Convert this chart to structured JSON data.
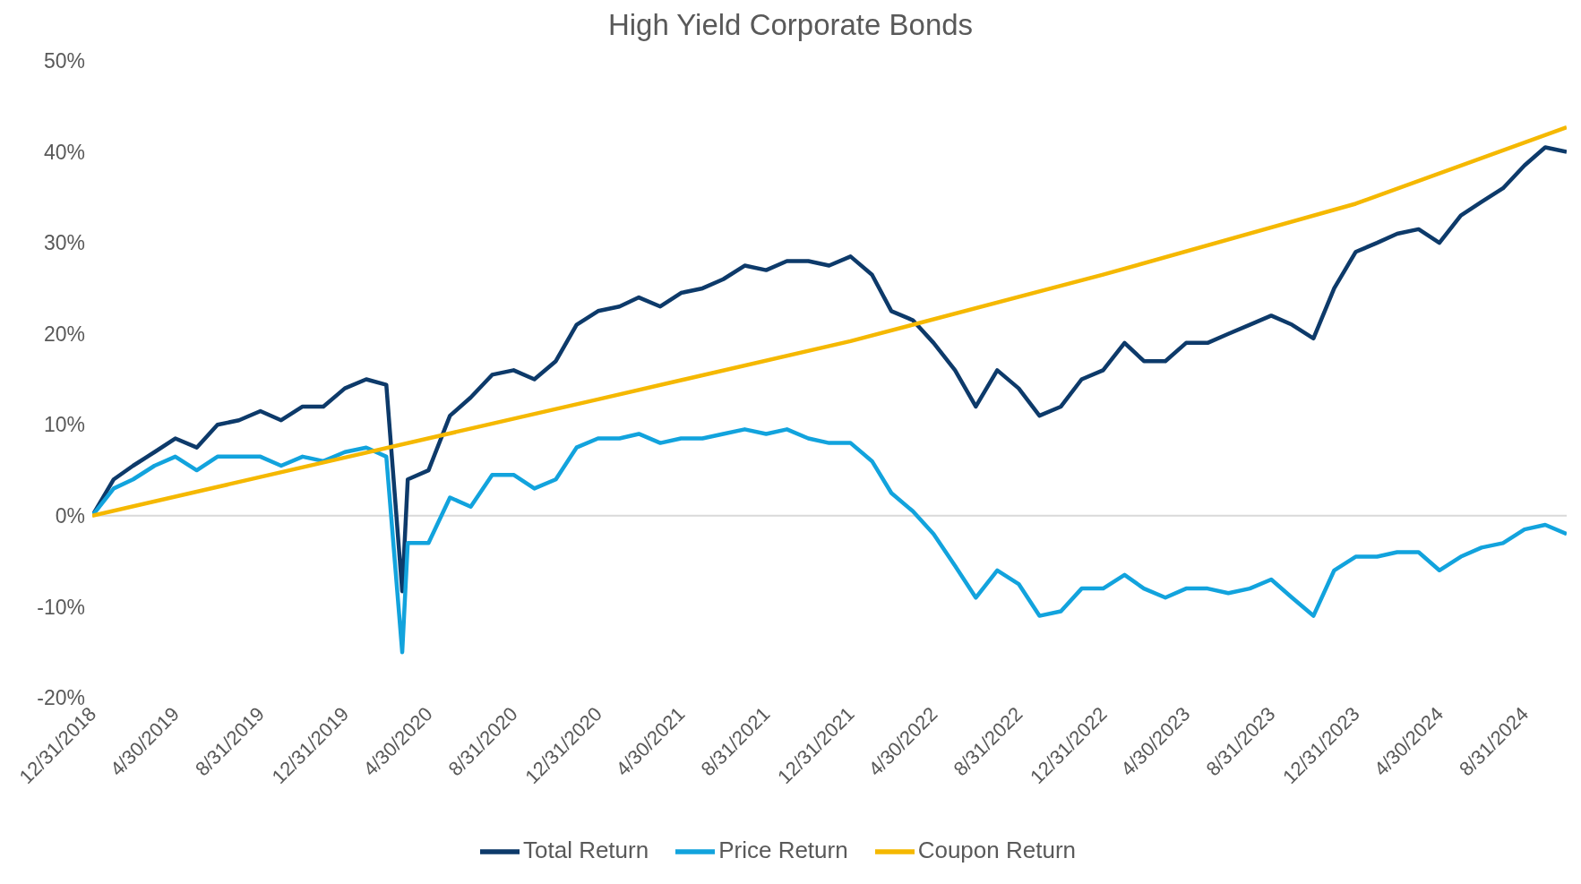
{
  "chart_data": {
    "type": "line",
    "title": "High Yield Corporate Bonds",
    "legend": "bottom",
    "grid": false,
    "marker": "none",
    "line_style": "solid",
    "xlim": [
      "2018-12-31",
      "2024-10-31"
    ],
    "xticks": [
      {
        "value": "2018-12-31",
        "label": "12/31/2018"
      },
      {
        "value": "2019-04-30",
        "label": "4/30/2019"
      },
      {
        "value": "2019-08-31",
        "label": "8/31/2019"
      },
      {
        "value": "2019-12-31",
        "label": "12/31/2019"
      },
      {
        "value": "2020-04-30",
        "label": "4/30/2020"
      },
      {
        "value": "2020-08-31",
        "label": "8/31/2020"
      },
      {
        "value": "2020-12-31",
        "label": "12/31/2020"
      },
      {
        "value": "2021-04-30",
        "label": "4/30/2021"
      },
      {
        "value": "2021-08-31",
        "label": "8/31/2021"
      },
      {
        "value": "2021-12-31",
        "label": "12/31/2021"
      },
      {
        "value": "2022-04-30",
        "label": "4/30/2022"
      },
      {
        "value": "2022-08-31",
        "label": "8/31/2022"
      },
      {
        "value": "2022-12-31",
        "label": "12/31/2022"
      },
      {
        "value": "2023-04-30",
        "label": "4/30/2023"
      },
      {
        "value": "2023-08-31",
        "label": "8/31/2023"
      },
      {
        "value": "2023-12-31",
        "label": "12/31/2023"
      },
      {
        "value": "2024-04-30",
        "label": "4/30/2024"
      },
      {
        "value": "2024-08-31",
        "label": "8/31/2024"
      }
    ],
    "ylim": [
      -20,
      50
    ],
    "yticks": [
      {
        "value": -20,
        "label": "-20%"
      },
      {
        "value": -10,
        "label": "-10%"
      },
      {
        "value": 0,
        "label": "0%"
      },
      {
        "value": 10,
        "label": "10%"
      },
      {
        "value": 20,
        "label": "20%"
      },
      {
        "value": 30,
        "label": "30%"
      },
      {
        "value": 40,
        "label": "40%"
      },
      {
        "value": 50,
        "label": "50%"
      }
    ],
    "ref_lines": [
      {
        "axis": "y",
        "value": 0,
        "color": "#d9d9d9"
      }
    ],
    "x": [
      "2018-12-31",
      "2019-01-31",
      "2019-02-28",
      "2019-03-31",
      "2019-04-30",
      "2019-05-31",
      "2019-06-30",
      "2019-07-31",
      "2019-08-31",
      "2019-09-30",
      "2019-10-31",
      "2019-11-30",
      "2019-12-31",
      "2020-01-31",
      "2020-02-29",
      "2020-03-23",
      "2020-03-31",
      "2020-04-30",
      "2020-05-31",
      "2020-06-30",
      "2020-07-31",
      "2020-08-31",
      "2020-09-30",
      "2020-10-31",
      "2020-11-30",
      "2020-12-31",
      "2021-01-31",
      "2021-02-28",
      "2021-03-31",
      "2021-04-30",
      "2021-05-31",
      "2021-06-30",
      "2021-07-31",
      "2021-08-31",
      "2021-09-30",
      "2021-10-31",
      "2021-11-30",
      "2021-12-31",
      "2022-01-31",
      "2022-02-28",
      "2022-03-31",
      "2022-04-30",
      "2022-05-31",
      "2022-06-30",
      "2022-07-31",
      "2022-08-31",
      "2022-09-30",
      "2022-10-31",
      "2022-11-30",
      "2022-12-31",
      "2023-01-31",
      "2023-02-28",
      "2023-03-31",
      "2023-04-30",
      "2023-05-31",
      "2023-06-30",
      "2023-07-31",
      "2023-08-31",
      "2023-09-30",
      "2023-10-31",
      "2023-11-30",
      "2023-12-31",
      "2024-01-31",
      "2024-02-29",
      "2024-03-31",
      "2024-04-30",
      "2024-05-31",
      "2024-06-30",
      "2024-07-31",
      "2024-08-31",
      "2024-09-30",
      "2024-10-31"
    ],
    "series": [
      {
        "name": "Total Return",
        "color": "#0d3a6a",
        "values": [
          0,
          4,
          5.5,
          7,
          8.5,
          7.5,
          10,
          10.5,
          11.5,
          10.5,
          12,
          12,
          14,
          15,
          14.4,
          -8.3,
          4,
          5,
          11,
          13,
          15.5,
          16,
          15,
          17,
          21,
          22.5,
          23,
          24,
          23,
          24.5,
          25,
          26,
          27.5,
          27,
          28,
          28,
          27.5,
          28.5,
          26.5,
          22.5,
          21.5,
          19,
          16,
          12,
          16,
          14,
          11,
          12,
          15,
          16,
          19,
          17,
          17,
          19,
          19,
          20,
          21,
          22,
          21,
          19.5,
          25,
          29,
          30,
          31,
          31.5,
          30,
          33,
          34.5,
          36,
          38.5,
          40.5,
          40
        ]
      },
      {
        "name": "Price Return",
        "color": "#12a3dd",
        "values": [
          0,
          3,
          4,
          5.5,
          6.5,
          5,
          6.5,
          6.5,
          6.5,
          5.5,
          6.5,
          6,
          7,
          7.5,
          6.5,
          -15,
          -3,
          -3,
          2,
          1,
          4.5,
          4.5,
          3,
          4,
          7.5,
          8.5,
          8.5,
          9,
          8,
          8.5,
          8.5,
          9,
          9.5,
          9,
          9.5,
          8.5,
          8,
          8,
          6,
          2.5,
          0.5,
          -2,
          -5.5,
          -9,
          -6,
          -7.5,
          -11,
          -10.5,
          -8,
          -8,
          -6.5,
          -8,
          -9,
          -8,
          -8,
          -8.5,
          -8,
          -7,
          -9,
          -11,
          -6,
          -4.5,
          -4.5,
          -4,
          -4,
          -6,
          -4.5,
          -3.5,
          -3,
          -1.5,
          -1,
          -2
        ]
      },
      {
        "name": "Coupon Return",
        "color": "#f5b800",
        "x": [
          "2018-12-31",
          "2019-12-31",
          "2020-12-31",
          "2021-12-31",
          "2022-12-31",
          "2023-12-31",
          "2024-10-31"
        ],
        "values": [
          0,
          6.4,
          12.8,
          19.2,
          26.5,
          34.3,
          42.7
        ]
      }
    ]
  }
}
